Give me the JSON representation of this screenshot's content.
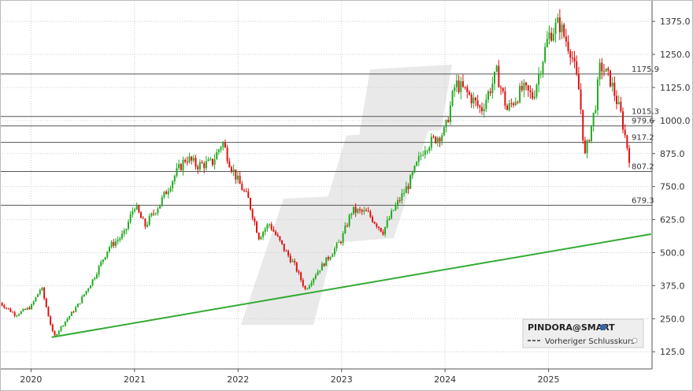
{
  "chart_data": {
    "type": "candlestick",
    "ylim": [
      60,
      1450
    ],
    "yticks": [
      "125.0",
      "250.0",
      "375.0",
      "500.0",
      "625.0",
      "750.0",
      "875.0",
      "1000.0",
      "1125.0",
      "1250.0",
      "1375.0"
    ],
    "xticks": [
      "2020",
      "2021",
      "2022",
      "2023",
      "2024",
      "2025"
    ],
    "grid": true,
    "horizontal_levels": [
      {
        "value": 1175.9,
        "label": "1175.9"
      },
      {
        "value": 1015.3,
        "label": "1015.3"
      },
      {
        "value": 979.6,
        "label": "979.6"
      },
      {
        "value": 917.2,
        "label": "917.2"
      },
      {
        "value": 807.2,
        "label": "807.2"
      },
      {
        "value": 679.3,
        "label": "679.3"
      }
    ],
    "trendline": {
      "x": [
        2020.2,
        2025.99
      ],
      "y": [
        180,
        570
      ],
      "color": "#33aa33"
    },
    "series": {
      "x": [
        2019.7,
        2019.85,
        2020.0,
        2020.1,
        2020.15,
        2020.22,
        2020.3,
        2020.45,
        2020.6,
        2020.75,
        2020.9,
        2021.0,
        2021.1,
        2021.25,
        2021.4,
        2021.5,
        2021.6,
        2021.75,
        2021.85,
        2021.92,
        2022.0,
        2022.1,
        2022.2,
        2022.3,
        2022.45,
        2022.55,
        2022.65,
        2022.75,
        2022.85,
        2023.0,
        2023.1,
        2023.25,
        2023.4,
        2023.5,
        2023.65,
        2023.8,
        2024.0,
        2024.1,
        2024.2,
        2024.35,
        2024.5,
        2024.6,
        2024.75,
        2024.85,
        2025.0,
        2025.1,
        2025.15,
        2025.22,
        2025.3,
        2025.35,
        2025.45,
        2025.5,
        2025.6,
        2025.7,
        2025.8
      ],
      "y": [
        310,
        265,
        295,
        370,
        290,
        180,
        225,
        300,
        400,
        520,
        570,
        680,
        600,
        690,
        800,
        860,
        830,
        840,
        920,
        840,
        770,
        700,
        560,
        610,
        510,
        450,
        360,
        420,
        470,
        550,
        660,
        650,
        580,
        660,
        760,
        900,
        960,
        1140,
        1110,
        1040,
        1180,
        1040,
        1120,
        1090,
        1320,
        1370,
        1320,
        1260,
        1100,
        860,
        1050,
        1210,
        1150,
        1020,
        820
      ]
    },
    "colors": {
      "up": "#22aa22",
      "down": "#dd1111",
      "grid": "#cccccc",
      "level": "#555555",
      "watermark": "#e9e9e9"
    },
    "legend": {
      "title": "PINDORA@SMART",
      "item": "Vorheriger Schlusskurs",
      "placement": "bottom-right"
    }
  }
}
